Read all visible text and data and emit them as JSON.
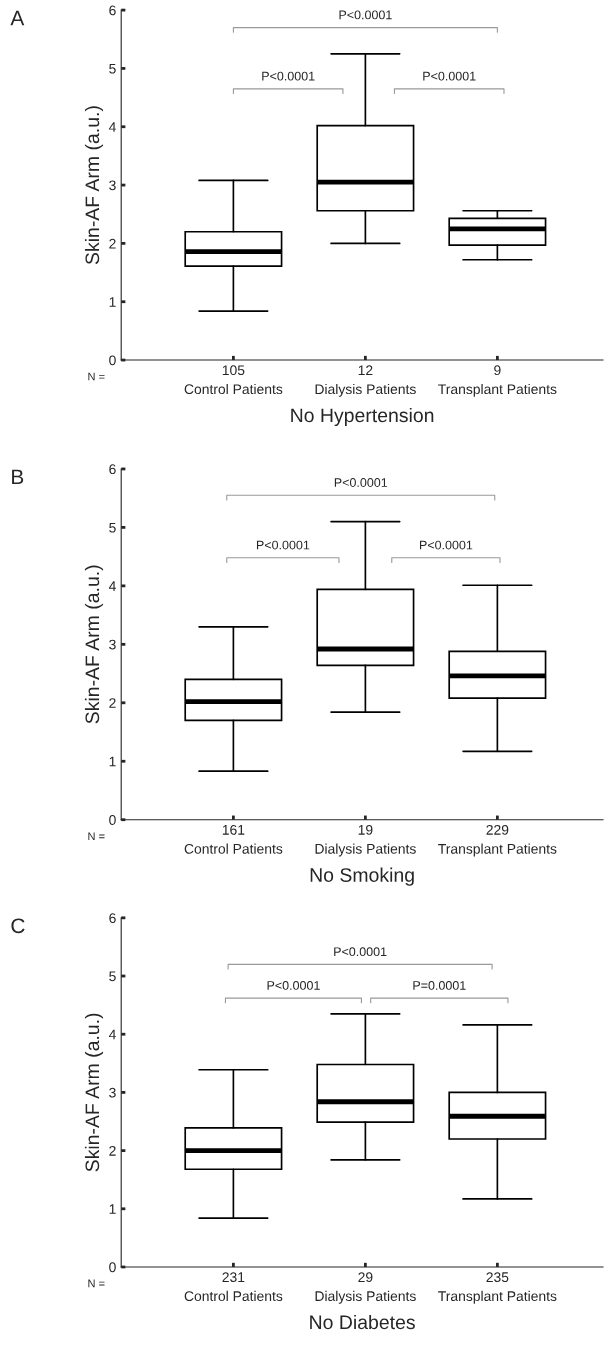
{
  "chart_data": [
    {
      "type": "box",
      "title": "A",
      "xlabel": "No Hypertension",
      "ylabel": "Skin-AF Arm (a.u.)",
      "categories": [
        "105\nControl Patients",
        "12\nDialysis Patients",
        "9\nTransplant Patients"
      ],
      "ylim": [
        0,
        6
      ],
      "yticks": [
        0,
        1,
        2,
        3,
        4,
        5,
        6
      ],
      "grid": false,
      "color": "#ffffff",
      "boxes": [
        {
          "low": 0.84,
          "q1": 1.61,
          "median": 1.86,
          "q3": 2.2,
          "high": 3.08
        },
        {
          "low": 2.0,
          "q1": 2.56,
          "median": 3.05,
          "q3": 4.02,
          "high": 5.25
        },
        {
          "low": 1.72,
          "q1": 1.97,
          "median": 2.25,
          "q3": 2.43,
          "high": 2.56
        }
      ],
      "annotations": [
        "N =",
        "P<0.0001",
        "P<0.0001",
        "P<0.0001"
      ]
    },
    {
      "type": "box",
      "title": "B",
      "xlabel": "No Smoking",
      "ylabel": "Skin-AF Arm (a.u.)",
      "categories": [
        "161\nControl Patients",
        "19\nDialysis Patients",
        "229\nTransplant Patients"
      ],
      "ylim": [
        0,
        6
      ],
      "yticks": [
        0,
        1,
        2,
        3,
        4,
        5,
        6
      ],
      "grid": false,
      "color": "#ffffff",
      "boxes": [
        {
          "low": 0.83,
          "q1": 1.7,
          "median": 2.02,
          "q3": 2.4,
          "high": 3.3
        },
        {
          "low": 1.84,
          "q1": 2.64,
          "median": 2.92,
          "q3": 3.94,
          "high": 5.1
        },
        {
          "low": 1.17,
          "q1": 2.08,
          "median": 2.46,
          "q3": 2.88,
          "high": 4.01
        }
      ],
      "annotations": [
        "N =",
        "P<0.0001",
        "P<0.0001",
        "P<0.0001"
      ]
    },
    {
      "type": "box",
      "title": "C",
      "xlabel": "No Diabetes",
      "ylabel": "Skin-AF Arm (a.u.)",
      "categories": [
        "231\nControl Patients",
        "29\nDialysis Patients",
        "235\nTransplant Patients"
      ],
      "ylim": [
        0,
        6
      ],
      "yticks": [
        0,
        1,
        2,
        3,
        4,
        5,
        6
      ],
      "grid": false,
      "color": "#ffffff",
      "boxes": [
        {
          "low": 0.84,
          "q1": 1.68,
          "median": 2.0,
          "q3": 2.39,
          "high": 3.39
        },
        {
          "low": 1.84,
          "q1": 2.49,
          "median": 2.84,
          "q3": 3.48,
          "high": 4.35
        },
        {
          "low": 1.17,
          "q1": 2.2,
          "median": 2.59,
          "q3": 3.0,
          "high": 4.16
        }
      ],
      "annotations": [
        "N =",
        "P<0.0001",
        "P<0.0001",
        "P=0.0001"
      ]
    }
  ]
}
